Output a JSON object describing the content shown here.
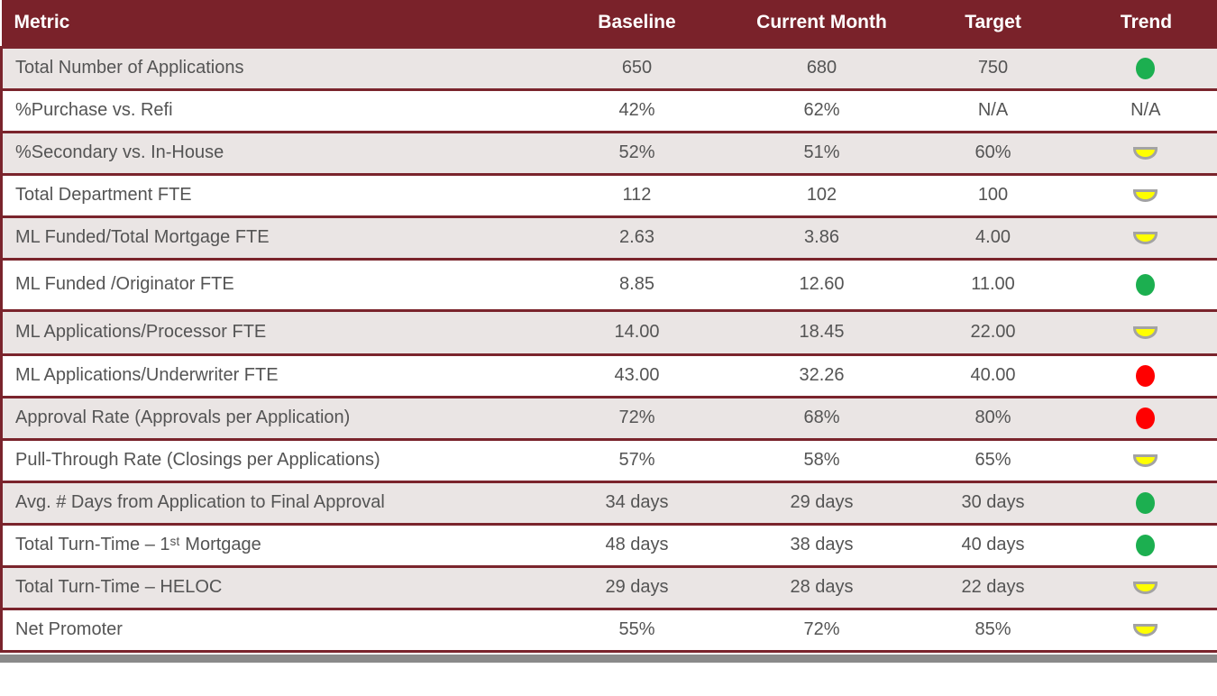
{
  "chart_data": {
    "type": "table",
    "columns": [
      "Metric",
      "Baseline",
      "Current Month",
      "Target",
      "Trend"
    ],
    "rows": [
      [
        "Total Number of Applications",
        "650",
        "680",
        "750",
        "green"
      ],
      [
        "%Purchase vs. Refi",
        "42%",
        "62%",
        "N/A",
        "N/A"
      ],
      [
        "%Secondary vs. In-House",
        "52%",
        "51%",
        "60%",
        "yellow"
      ],
      [
        "Total Department FTE",
        "112",
        "102",
        "100",
        "yellow"
      ],
      [
        "ML Funded/Total Mortgage FTE",
        "2.63",
        "3.86",
        "4.00",
        "yellow"
      ],
      [
        "ML Funded /Originator FTE",
        "8.85",
        "12.60",
        "11.00",
        "green"
      ],
      [
        "ML Applications/Processor FTE",
        "14.00",
        "18.45",
        "22.00",
        "yellow"
      ],
      [
        "ML Applications/Underwriter FTE",
        "43.00",
        "32.26",
        "40.00",
        "red"
      ],
      [
        "Approval Rate (Approvals per Application)",
        "72%",
        "68%",
        "80%",
        "red"
      ],
      [
        "Pull-Through Rate (Closings per Applications)",
        "57%",
        "58%",
        "65%",
        "yellow"
      ],
      [
        "Avg. # Days from Application to Final Approval",
        "34 days",
        "29 days",
        "30 days",
        "green"
      ],
      [
        "Total Turn-Time – 1ˢᵗ Mortgage",
        "48 days",
        "38 days",
        "40 days",
        "green"
      ],
      [
        "Total Turn-Time – HELOC",
        "29 days",
        "28 days",
        "22 days",
        "yellow"
      ],
      [
        "Net Promoter",
        "55%",
        "72%",
        "85%",
        "yellow"
      ]
    ],
    "legend_position": "none",
    "grid": "horizontal-maroon-rules"
  },
  "trend_icons": {
    "green": "green-circle-on-target",
    "yellow": "yellow-half-circle-near-target",
    "red": "red-circle-off-target",
    "na_label": "N/A"
  },
  "colors": {
    "header_bg": "#7A222A",
    "header_text": "#FFFFFF",
    "row_bg": "#FFFFFF",
    "row_alt_bg": "#EAE5E4",
    "border": "#7A242C",
    "cell_text": "#545454",
    "trend_green": "#1CAF50",
    "trend_red": "#FF0000",
    "trend_yellow": "#FFFF00",
    "trend_yellow_border": "#A3A3A3",
    "scrollbar": "#8A8A8A"
  }
}
